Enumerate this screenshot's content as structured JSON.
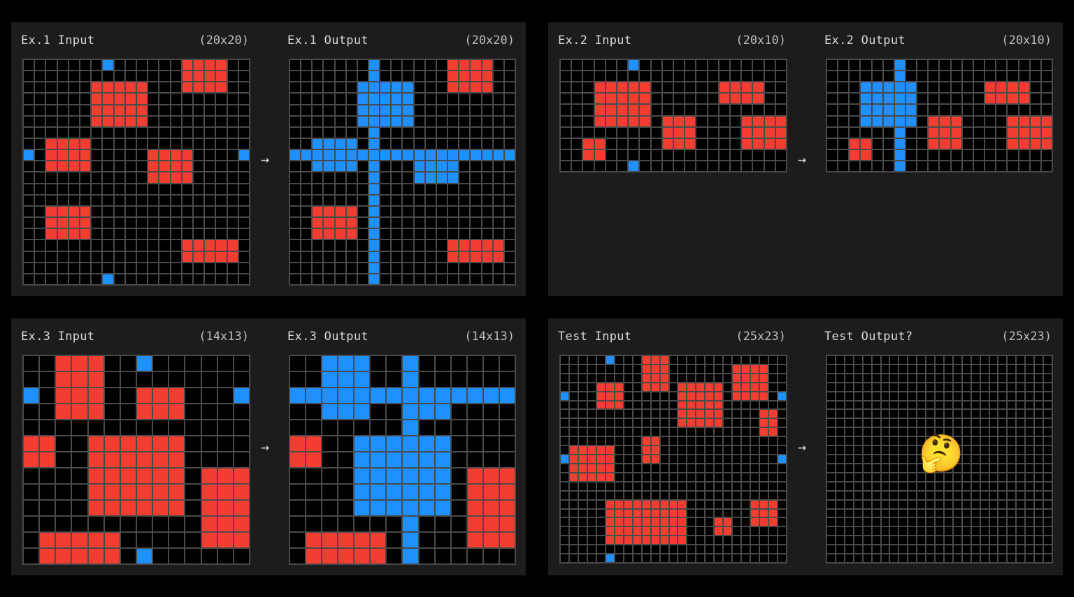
{
  "colors": {
    "background": "#000000",
    "panel": "#1c1c1c",
    "grid_line": "#4a4a4a",
    "empty": "#000000",
    "red": "#f43d31",
    "blue": "#1e90ff"
  },
  "arrow_glyph": "→",
  "examples": [
    {
      "input": {
        "label": "Ex.1 Input",
        "dims": "(20x20)",
        "cols": 20,
        "rows": 20,
        "red": [
          [
            0,
            14,
            2,
            17
          ],
          [
            2,
            6,
            5,
            10
          ],
          [
            7,
            2,
            9,
            5
          ],
          [
            8,
            11,
            10,
            14
          ],
          [
            13,
            2,
            15,
            5
          ],
          [
            16,
            14,
            17,
            18
          ]
        ],
        "blue": [
          [
            0,
            7
          ],
          [
            8,
            0
          ],
          [
            8,
            19
          ],
          [
            19,
            7
          ]
        ]
      },
      "output": {
        "label": "Ex.1 Output",
        "dims": "(20x20)",
        "cols": 20,
        "rows": 20,
        "red": [
          [
            0,
            14,
            2,
            17
          ],
          [
            13,
            2,
            15,
            5
          ],
          [
            16,
            14,
            17,
            18
          ]
        ],
        "blue_rects": [
          [
            2,
            6,
            5,
            10
          ],
          [
            7,
            2,
            9,
            5
          ],
          [
            8,
            11,
            10,
            14
          ],
          [
            0,
            7,
            19,
            7
          ],
          [
            8,
            0,
            8,
            19
          ]
        ],
        "blue": []
      }
    },
    {
      "input": {
        "label": "Ex.2 Input",
        "dims": "(20x10)",
        "cols": 20,
        "rows": 10,
        "red": [
          [
            2,
            3,
            5,
            7
          ],
          [
            2,
            14,
            3,
            17
          ],
          [
            5,
            9,
            7,
            11
          ],
          [
            5,
            16,
            7,
            19
          ],
          [
            7,
            2,
            8,
            3
          ]
        ],
        "blue": [
          [
            0,
            6
          ],
          [
            9,
            6
          ]
        ]
      },
      "output": {
        "label": "Ex.2 Output",
        "dims": "(20x10)",
        "cols": 20,
        "rows": 10,
        "red": [
          [
            2,
            14,
            3,
            17
          ],
          [
            5,
            9,
            7,
            11
          ],
          [
            5,
            16,
            7,
            19
          ],
          [
            7,
            2,
            8,
            3
          ]
        ],
        "blue_rects": [
          [
            2,
            3,
            5,
            7
          ],
          [
            0,
            6,
            9,
            6
          ]
        ],
        "blue": []
      }
    },
    {
      "input": {
        "label": "Ex.3 Input",
        "dims": "(14x13)",
        "cols": 14,
        "rows": 13,
        "red": [
          [
            0,
            2,
            3,
            4
          ],
          [
            2,
            7,
            3,
            9
          ],
          [
            5,
            0,
            6,
            1
          ],
          [
            5,
            4,
            9,
            9
          ],
          [
            7,
            11,
            11,
            13
          ],
          [
            11,
            1,
            12,
            5
          ]
        ],
        "blue": [
          [
            0,
            7
          ],
          [
            2,
            0
          ],
          [
            2,
            13
          ],
          [
            12,
            7
          ]
        ]
      },
      "output": {
        "label": "Ex.3 Output",
        "dims": "(14x13)",
        "cols": 14,
        "rows": 13,
        "red": [
          [
            5,
            0,
            6,
            1
          ],
          [
            7,
            11,
            11,
            13
          ],
          [
            11,
            1,
            12,
            5
          ]
        ],
        "blue_rects": [
          [
            0,
            2,
            3,
            4
          ],
          [
            2,
            7,
            3,
            9
          ],
          [
            5,
            4,
            9,
            9
          ],
          [
            0,
            7,
            12,
            7
          ],
          [
            2,
            0,
            2,
            13
          ]
        ],
        "blue": []
      }
    },
    {
      "input": {
        "label": "Test Input",
        "dims": "(25x23)",
        "cols": 25,
        "rows": 23,
        "red": [
          [
            0,
            9,
            3,
            11
          ],
          [
            1,
            19,
            4,
            22
          ],
          [
            3,
            4,
            5,
            6
          ],
          [
            3,
            13,
            7,
            17
          ],
          [
            6,
            22,
            8,
            23
          ],
          [
            9,
            9,
            11,
            10
          ],
          [
            10,
            1,
            13,
            5
          ],
          [
            16,
            5,
            20,
            13
          ],
          [
            16,
            21,
            18,
            23
          ],
          [
            18,
            17,
            19,
            18
          ]
        ],
        "blue": [
          [
            0,
            5
          ],
          [
            4,
            0
          ],
          [
            4,
            24
          ],
          [
            11,
            0
          ],
          [
            11,
            24
          ],
          [
            22,
            5
          ]
        ]
      },
      "output": {
        "label": "Test Output?",
        "dims": "(25x23)",
        "cols": 25,
        "rows": 23,
        "red": [],
        "blue_rects": [],
        "blue": [],
        "placeholder_emoji": "🤔",
        "placeholder_name": "thinking-face-icon"
      }
    }
  ]
}
